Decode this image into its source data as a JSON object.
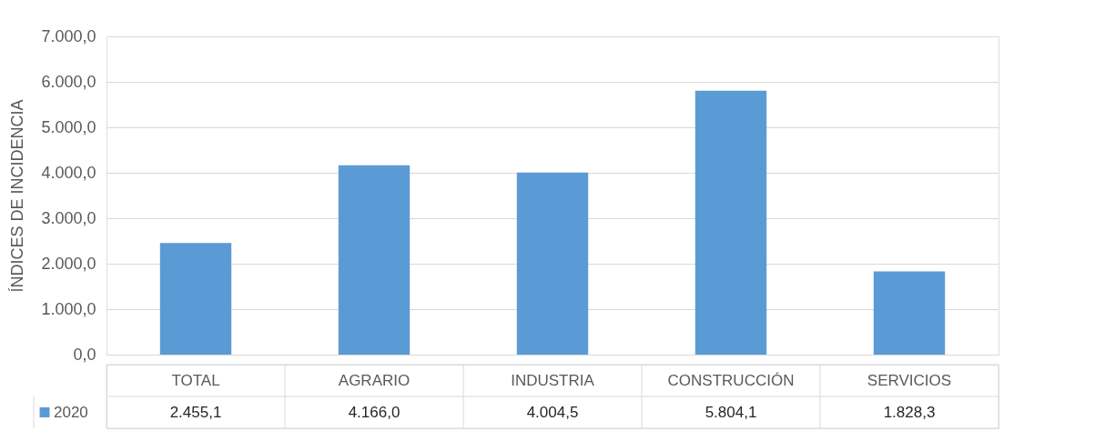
{
  "chart_data": {
    "type": "bar",
    "ylabel": "ÍNDICES DE INCIDENCIA",
    "categories": [
      "TOTAL",
      "AGRARIO",
      "INDUSTRIA",
      "CONSTRUCCIÓN",
      "SERVICIOS"
    ],
    "series": [
      {
        "name": "2020",
        "color": "#5b9bd5",
        "values": [
          2455.1,
          4166.0,
          4004.5,
          5804.1,
          1828.3
        ],
        "value_labels": [
          "2.455,1",
          "4.166,0",
          "4.004,5",
          "5.804,1",
          "1.828,3"
        ]
      }
    ],
    "ylim": [
      0,
      7000
    ],
    "yticks": [
      {
        "value": 0,
        "label": "0,0"
      },
      {
        "value": 1000,
        "label": "1.000,0"
      },
      {
        "value": 2000,
        "label": "2.000,0"
      },
      {
        "value": 3000,
        "label": "3.000,0"
      },
      {
        "value": 4000,
        "label": "4.000,0"
      },
      {
        "value": 5000,
        "label": "5.000,0"
      },
      {
        "value": 6000,
        "label": "6.000,0"
      },
      {
        "value": 7000,
        "label": "7.000,0"
      }
    ],
    "grid": "y",
    "legend": "bottom left"
  }
}
